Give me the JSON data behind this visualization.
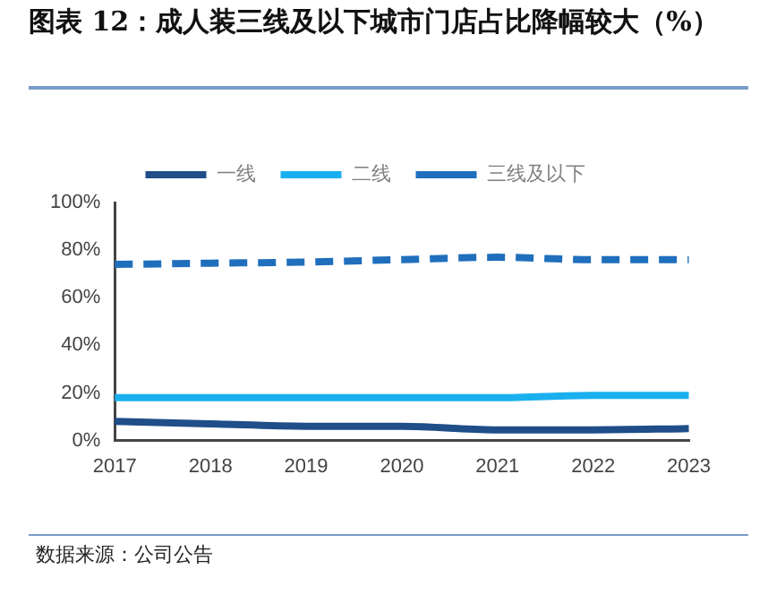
{
  "chart_data": {
    "type": "line",
    "title": "图表 12：成人装三线及以下城市门店占比降幅较大（%）",
    "categories": [
      "2017",
      "2018",
      "2019",
      "2020",
      "2021",
      "2022",
      "2023"
    ],
    "series": [
      {
        "name": "一线",
        "color": "#1f4e89",
        "values": [
          8,
          7,
          6,
          6,
          4.5,
          4.5,
          5
        ]
      },
      {
        "name": "二线",
        "color": "#1ab0ef",
        "values": [
          18,
          18,
          18,
          18,
          18,
          19,
          19
        ]
      },
      {
        "name": "三线及以下",
        "color": "#1f6fbd",
        "values": [
          74,
          74.5,
          75,
          76,
          77,
          76,
          76
        ],
        "line_style": "dashed"
      }
    ],
    "ylim": [
      0,
      100
    ],
    "yticks": [
      {
        "value": 0,
        "label": "0%"
      },
      {
        "value": 20,
        "label": "20%"
      },
      {
        "value": 40,
        "label": "40%"
      },
      {
        "value": 60,
        "label": "60%"
      },
      {
        "value": 80,
        "label": "80%"
      },
      {
        "value": 100,
        "label": "100%"
      }
    ],
    "grid": false,
    "legend": "top",
    "marker": "none",
    "annotations": [
      "数据来源：公司公告"
    ]
  }
}
